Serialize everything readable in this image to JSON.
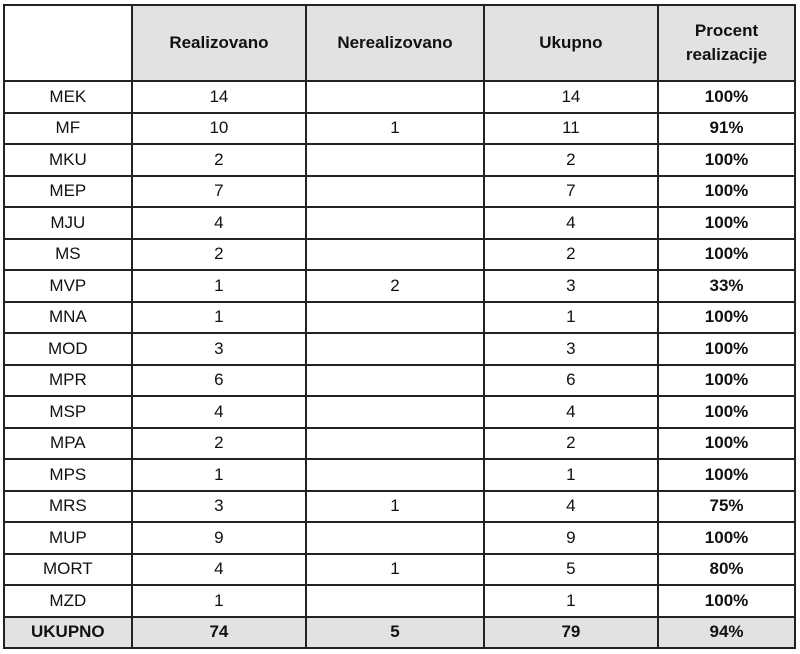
{
  "headers": [
    "",
    "Realizovano",
    "Nerealizovano",
    "Ukupno",
    "Procent realizacije"
  ],
  "rows": [
    [
      "MEK",
      "14",
      "",
      "14",
      "100%"
    ],
    [
      "MF",
      "10",
      "1",
      "11",
      "91%"
    ],
    [
      "MKU",
      "2",
      "",
      "2",
      "100%"
    ],
    [
      "MEP",
      "7",
      "",
      "7",
      "100%"
    ],
    [
      "MJU",
      "4",
      "",
      "4",
      "100%"
    ],
    [
      "MS",
      "2",
      "",
      "2",
      "100%"
    ],
    [
      "MVP",
      "1",
      "2",
      "3",
      "33%"
    ],
    [
      "MNA",
      "1",
      "",
      "1",
      "100%"
    ],
    [
      "MOD",
      "3",
      "",
      "3",
      "100%"
    ],
    [
      "MPR",
      "6",
      "",
      "6",
      "100%"
    ],
    [
      "MSP",
      "4",
      "",
      "4",
      "100%"
    ],
    [
      "MPA",
      "2",
      "",
      "2",
      "100%"
    ],
    [
      "MPS",
      "1",
      "",
      "1",
      "100%"
    ],
    [
      "MRS",
      "3",
      "1",
      "4",
      "75%"
    ],
    [
      "MUP",
      "9",
      "",
      "9",
      "100%"
    ],
    [
      "MORT",
      "4",
      "1",
      "5",
      "80%"
    ],
    [
      "MZD",
      "1",
      "",
      "1",
      "100%"
    ]
  ],
  "total": [
    "UKUPNO",
    "74",
    "5",
    "79",
    "94%"
  ],
  "colors": {
    "header_bg": "#e2e2e2",
    "border": "#222222"
  }
}
